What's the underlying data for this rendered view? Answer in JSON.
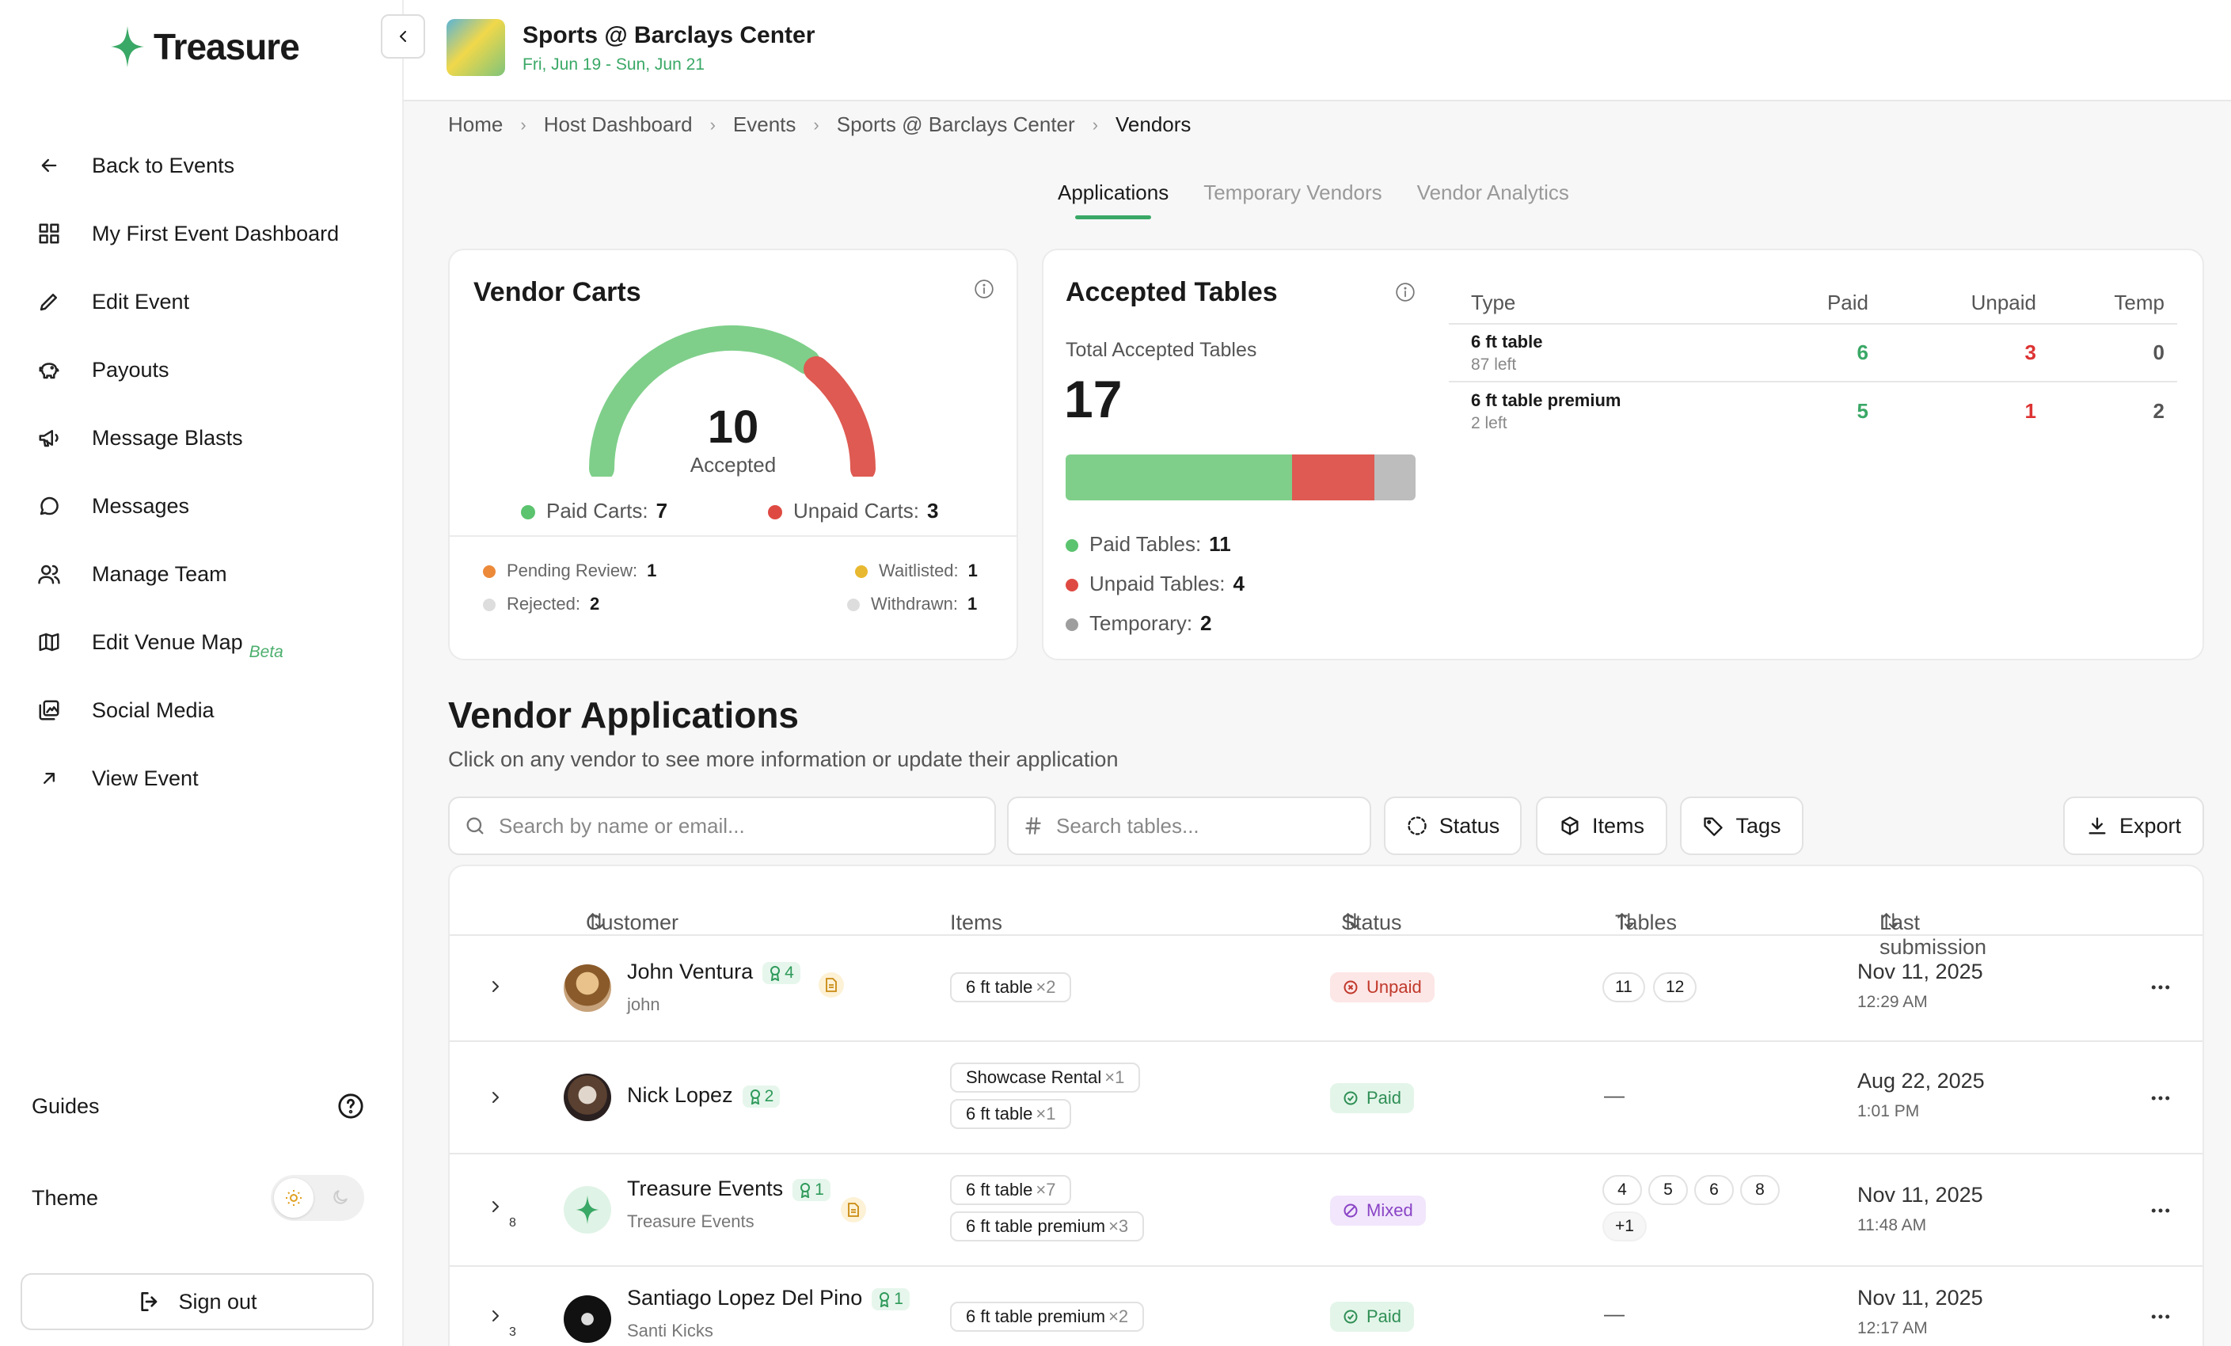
{
  "app": {
    "name": "Treasure"
  },
  "sidebar": {
    "items": [
      {
        "label": "Back to Events",
        "icon": "arrow-left-icon"
      },
      {
        "label": "My First Event Dashboard",
        "icon": "grid-icon"
      },
      {
        "label": "Edit Event",
        "icon": "pencil-icon"
      },
      {
        "label": "Payouts",
        "icon": "piggy-bank-icon"
      },
      {
        "label": "Message Blasts",
        "icon": "megaphone-icon"
      },
      {
        "label": "Messages",
        "icon": "chat-bubble-icon"
      },
      {
        "label": "Manage Team",
        "icon": "users-icon"
      },
      {
        "label": "Edit Venue Map",
        "icon": "map-icon",
        "badge": "Beta"
      },
      {
        "label": "Social Media",
        "icon": "image-icon"
      },
      {
        "label": "View Event",
        "icon": "external-arrow-icon"
      }
    ],
    "guides": "Guides",
    "theme": "Theme",
    "sign_out": "Sign out"
  },
  "event": {
    "title": "Sports @ Barclays Center",
    "dates": "Fri, Jun 19 - Sun, Jun 21"
  },
  "breadcrumb": [
    "Home",
    "Host Dashboard",
    "Events",
    "Sports @ Barclays Center",
    "Vendors"
  ],
  "tabs": [
    {
      "label": "Applications",
      "active": true
    },
    {
      "label": "Temporary Vendors",
      "active": false
    },
    {
      "label": "Vendor Analytics",
      "active": false
    }
  ],
  "vendor_carts": {
    "title": "Vendor Carts",
    "accepted_count": "10",
    "accepted_label": "Accepted",
    "paid_label": "Paid Carts:",
    "paid": "7",
    "unpaid_label": "Unpaid Carts:",
    "unpaid": "3",
    "pending_label": "Pending Review:",
    "pending": "1",
    "waitlisted_label": "Waitlisted:",
    "waitlisted": "1",
    "rejected_label": "Rejected:",
    "rejected": "2",
    "withdrawn_label": "Withdrawn:",
    "withdrawn": "1"
  },
  "accepted_tables": {
    "title": "Accepted Tables",
    "total_label": "Total Accepted Tables",
    "total": "17",
    "paid_label": "Paid Tables:",
    "paid": "11",
    "unpaid_label": "Unpaid Tables:",
    "unpaid": "4",
    "temp_label": "Temporary:",
    "temp": "2",
    "columns": [
      "Type",
      "Paid",
      "Unpaid",
      "Temp"
    ],
    "rows": [
      {
        "type": "6 ft table",
        "left": "87 left",
        "paid": "6",
        "unpaid": "3",
        "temp": "0"
      },
      {
        "type": "6 ft table premium",
        "left": "2 left",
        "paid": "5",
        "unpaid": "1",
        "temp": "2"
      }
    ]
  },
  "applications": {
    "title": "Vendor Applications",
    "subtitle": "Click on any vendor to see more information or update their application",
    "search_placeholder": "Search by name or email...",
    "tables_placeholder": "Search tables...",
    "filters": [
      "Status",
      "Items",
      "Tags"
    ],
    "export": "Export",
    "columns": [
      "Customer",
      "Items",
      "Status",
      "Tables",
      "Last submission"
    ],
    "rows": [
      {
        "name": "John Ventura",
        "handle": "john",
        "badge": "4",
        "items": [
          {
            "name": "6 ft table",
            "qty": "×2"
          }
        ],
        "status": "Unpaid",
        "tables": [
          "11",
          "12"
        ],
        "date": "Nov 11, 2025",
        "time": "12:29 AM"
      },
      {
        "name": "Nick Lopez",
        "handle": "",
        "badge": "2",
        "items": [
          {
            "name": "Showcase Rental",
            "qty": "×1"
          },
          {
            "name": "6 ft table",
            "qty": "×1"
          }
        ],
        "status": "Paid",
        "tables": [],
        "date": "Aug 22, 2025",
        "time": "1:01 PM"
      },
      {
        "name": "Treasure Events",
        "handle": "Treasure Events",
        "badge": "1",
        "sub_count": "8",
        "items": [
          {
            "name": "6 ft table",
            "qty": "×7"
          },
          {
            "name": "6 ft table premium",
            "qty": "×3"
          }
        ],
        "status": "Mixed",
        "tables": [
          "4",
          "5",
          "6",
          "8",
          "+1"
        ],
        "date": "Nov 11, 2025",
        "time": "11:48 AM"
      },
      {
        "name": "Santiago Lopez Del Pino",
        "handle": "Santi Kicks",
        "badge": "1",
        "sub_count": "3",
        "items": [
          {
            "name": "6 ft table premium",
            "qty": "×2"
          }
        ],
        "status": "Paid",
        "tables": [],
        "date": "Nov 11, 2025",
        "time": "12:17 AM"
      }
    ],
    "empty_tables": "—"
  },
  "colors": {
    "green": "#7fcf8a",
    "red": "#de5a52",
    "gray": "#bdbdbd",
    "orange": "#ec8a3a",
    "yellow": "#e8b830",
    "accent": "#3aa866"
  }
}
